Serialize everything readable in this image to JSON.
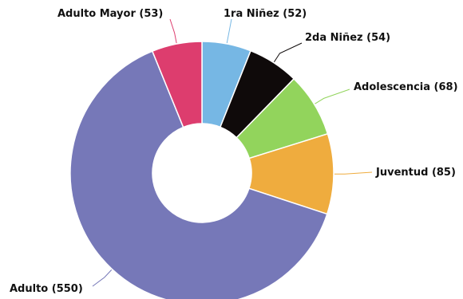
{
  "chart_data": {
    "type": "pie",
    "variant": "donut",
    "title": "",
    "legend": "none",
    "slices": [
      {
        "label": "1ra Niñez",
        "value": 52,
        "display": "1ra Niñez (52)",
        "color": "#76b7e4"
      },
      {
        "label": "2da Niñez",
        "value": 54,
        "display": "2da Niñez (54)",
        "color": "#0f0a0a"
      },
      {
        "label": "Adolescencia",
        "value": 68,
        "display": "Adolescencia (68)",
        "color": "#92d45c"
      },
      {
        "label": "Juventud",
        "value": 85,
        "display": "Juventud (85)",
        "color": "#efac3e"
      },
      {
        "label": "Adulto",
        "value": 550,
        "display": "Adulto (550)",
        "color": "#7678b8"
      },
      {
        "label": "Adulto Mayor",
        "value": 53,
        "display": "Adulto Mayor (53)",
        "color": "#dd3d6e"
      }
    ]
  }
}
